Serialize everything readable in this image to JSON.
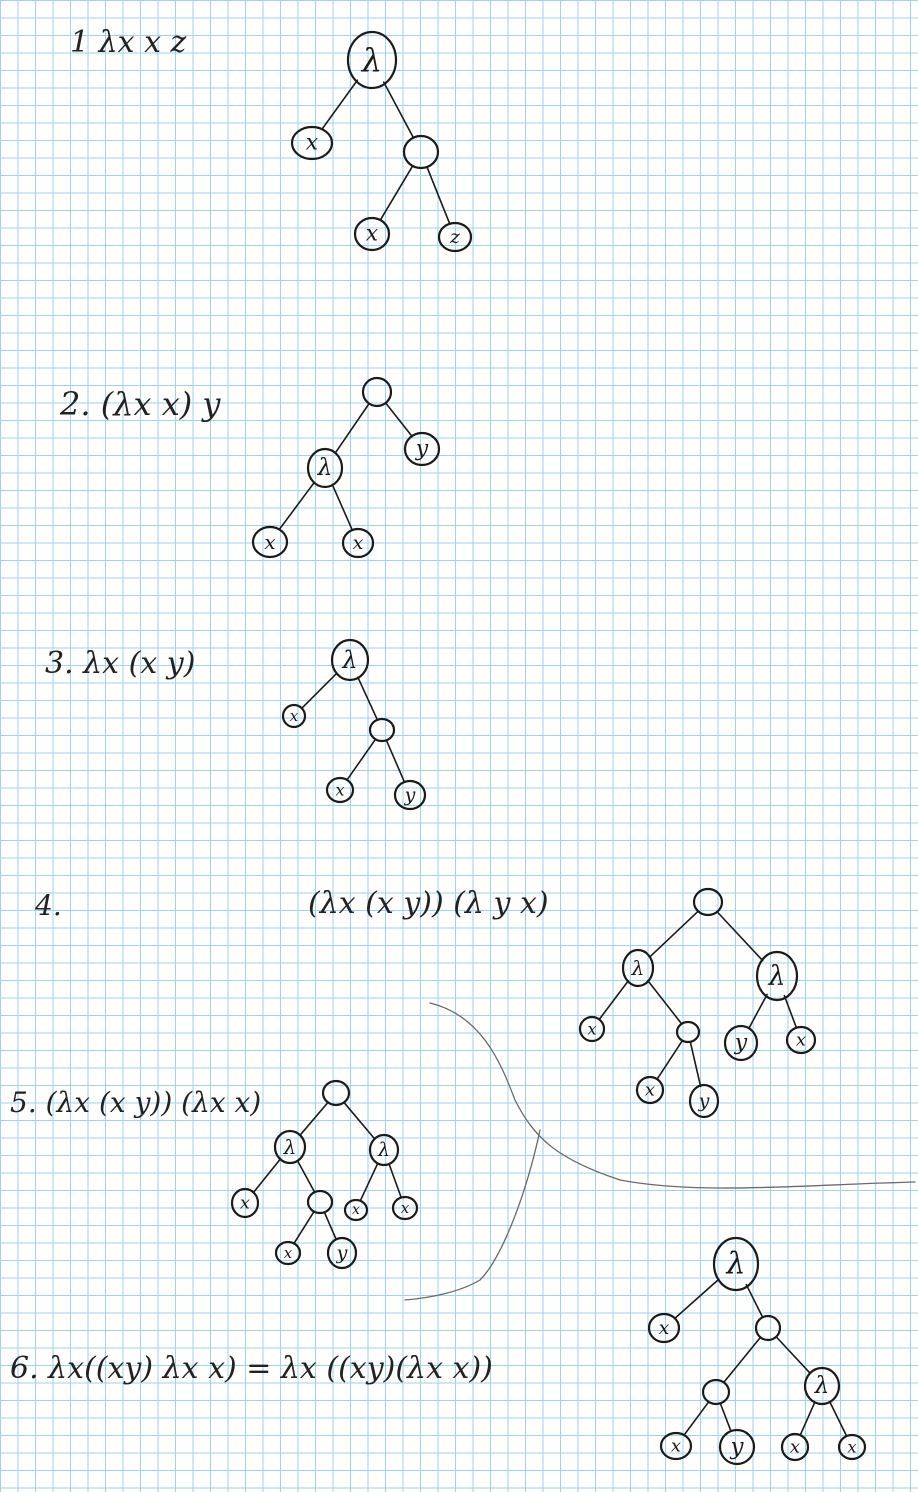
{
  "problems": [
    {
      "label": "1 λx  x  z",
      "tree": {
        "t": "λ",
        "c": [
          {
            "t": "x"
          },
          {
            "t": "",
            "c": [
              {
                "t": "x"
              },
              {
                "t": "z"
              }
            ]
          }
        ]
      }
    },
    {
      "label": "2. (λx x) y",
      "tree": {
        "t": "",
        "c": [
          {
            "t": "λ",
            "c": [
              {
                "t": "x"
              },
              {
                "t": "x"
              }
            ]
          },
          {
            "t": "y"
          }
        ]
      }
    },
    {
      "label": "3. λx (x y)",
      "tree": {
        "t": "λ",
        "c": [
          {
            "t": "x"
          },
          {
            "t": "",
            "c": [
              {
                "t": "x"
              },
              {
                "t": "y"
              }
            ]
          }
        ]
      }
    },
    {
      "label": "4.",
      "expression": "(λx (x y)) (λ y x)",
      "tree": {
        "t": "",
        "c": [
          {
            "t": "λ",
            "c": [
              {
                "t": "x"
              },
              {
                "t": "",
                "c": [
                  {
                    "t": "x"
                  },
                  {
                    "t": "y"
                  }
                ]
              }
            ]
          },
          {
            "t": "λ",
            "c": [
              {
                "t": "y"
              },
              {
                "t": "x"
              }
            ]
          }
        ]
      }
    },
    {
      "label": "5. (λx (x y)) (λx x)",
      "tree": {
        "t": "",
        "c": [
          {
            "t": "λ",
            "c": [
              {
                "t": "x"
              },
              {
                "t": "",
                "c": [
                  {
                    "t": "x"
                  },
                  {
                    "t": "y"
                  }
                ]
              }
            ]
          },
          {
            "t": "λ",
            "c": [
              {
                "t": "x"
              },
              {
                "t": "x"
              }
            ]
          }
        ]
      }
    },
    {
      "label": "6. λx((xy) λx x) = λx ((xy)(λx x))",
      "tree": {
        "t": "λ",
        "c": [
          {
            "t": "x"
          },
          {
            "t": "",
            "c": [
              {
                "t": "",
                "c": [
                  {
                    "t": "x"
                  },
                  {
                    "t": "y"
                  }
                ]
              },
              {
                "t": "λ",
                "c": [
                  {
                    "t": "x"
                  },
                  {
                    "t": "x"
                  }
                ]
              }
            ]
          }
        ]
      }
    }
  ],
  "colors": {
    "grid": "#9fd3e8",
    "ink": "#1a1a1a",
    "pencil": "#6a6a6a"
  }
}
